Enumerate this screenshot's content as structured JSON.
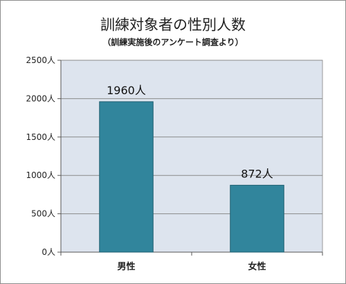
{
  "chart_data": {
    "type": "bar",
    "title": "訓練対象者の性別人数",
    "subtitle": "（訓練実施後のアンケート調査より）",
    "categories": [
      "男性",
      "女性"
    ],
    "values": [
      1960,
      872
    ],
    "data_labels": [
      "1960人",
      "872人"
    ],
    "y_ticks": [
      {
        "value": 0,
        "label": "0人"
      },
      {
        "value": 500,
        "label": "500人"
      },
      {
        "value": 1000,
        "label": "1000人"
      },
      {
        "value": 1500,
        "label": "1500人"
      },
      {
        "value": 2000,
        "label": "2000人"
      },
      {
        "value": 2500,
        "label": "2500人"
      }
    ],
    "ylim": [
      0,
      2500
    ],
    "grid": true,
    "legend": "none",
    "colors": {
      "bar": "#31859c",
      "bar_edge": "#1f5f70",
      "plot_bg": "#dde4ee",
      "grid": "#8a8a8a"
    }
  }
}
